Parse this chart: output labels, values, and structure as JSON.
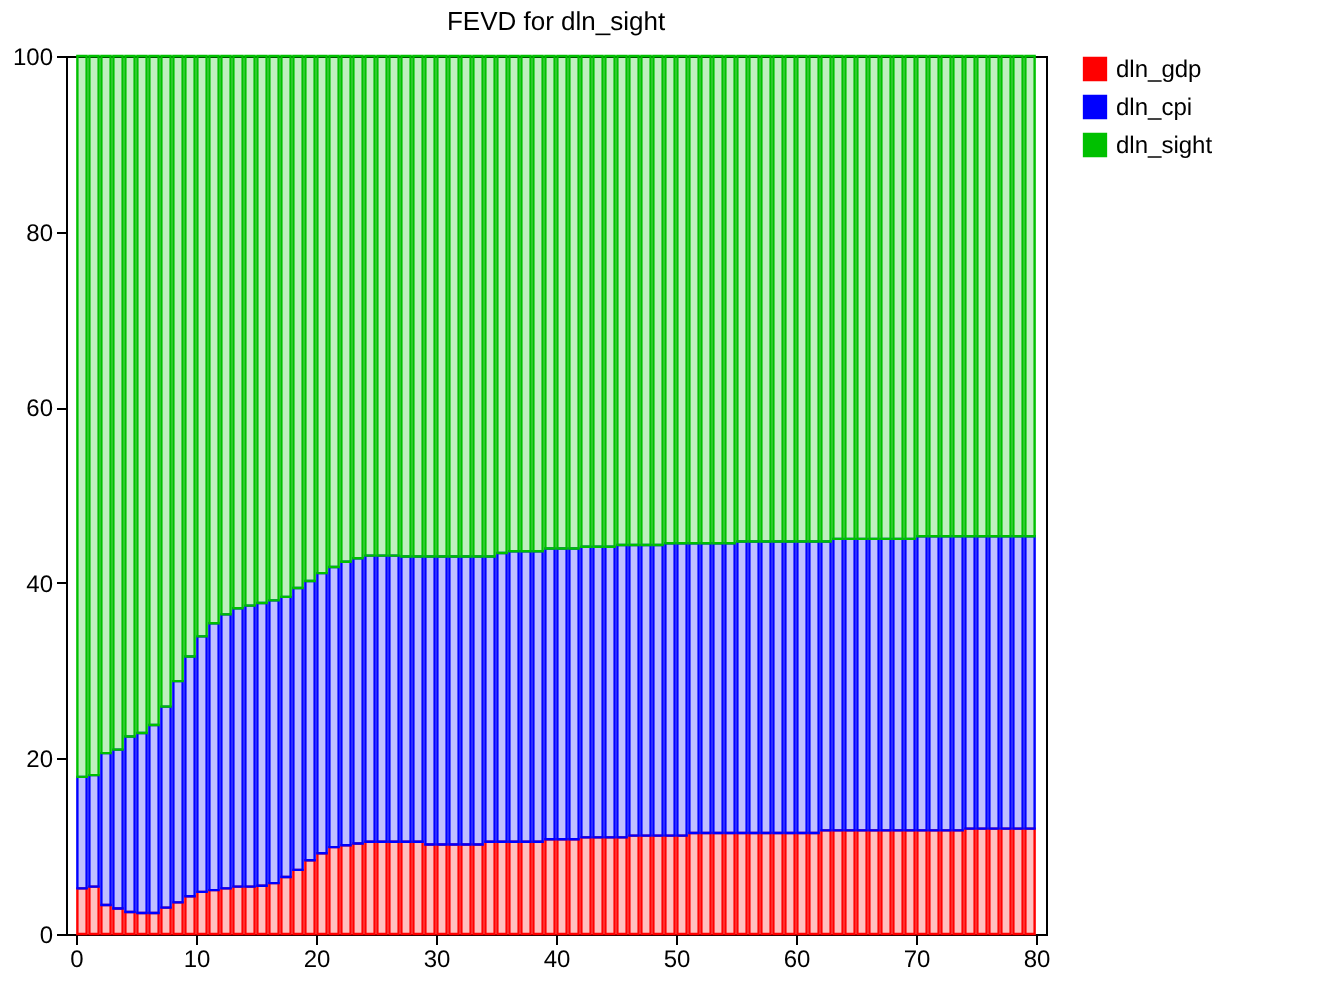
{
  "chart_data": {
    "type": "bar",
    "title": "FEVD for dln_sight",
    "stacked": true,
    "x": [
      0.5,
      1.5,
      2.5,
      3.5,
      4.5,
      5.5,
      6.5,
      7.5,
      8.5,
      9.5,
      10.5,
      11.5,
      12.5,
      13.5,
      14.5,
      15.5,
      16.5,
      17.5,
      18.5,
      19.5,
      20.5,
      21.5,
      22.5,
      23.5,
      24.5,
      25.5,
      26.5,
      27.5,
      28.5,
      29.5,
      30.5,
      31.5,
      32.5,
      33.5,
      34.5,
      35.5,
      36.5,
      37.5,
      38.5,
      39.5,
      40.5,
      41.5,
      42.5,
      43.5,
      44.5,
      45.5,
      46.5,
      47.5,
      48.5,
      49.5,
      50.5,
      51.5,
      52.5,
      53.5,
      54.5,
      55.5,
      56.5,
      57.5,
      58.5,
      59.5,
      60.5,
      61.5,
      62.5,
      63.5,
      64.5,
      65.5,
      66.5,
      67.5,
      68.5,
      69.5,
      70.5,
      71.5,
      72.5,
      73.5,
      74.5,
      75.5,
      76.5,
      77.5,
      78.5,
      79.5
    ],
    "series": [
      {
        "name": "dln_gdp",
        "color": "#ff0000",
        "values": [
          5.2,
          5.4,
          3.3,
          2.9,
          2.5,
          2.4,
          2.4,
          3.0,
          3.6,
          4.3,
          4.8,
          5.0,
          5.2,
          5.4,
          5.4,
          5.5,
          5.8,
          6.5,
          7.3,
          8.4,
          9.2,
          9.9,
          10.1,
          10.3,
          10.5,
          10.5,
          10.5,
          10.5,
          10.5,
          10.2,
          10.2,
          10.2,
          10.2,
          10.2,
          10.5,
          10.5,
          10.5,
          10.5,
          10.5,
          10.8,
          10.8,
          10.8,
          11.0,
          11.0,
          11.0,
          11.0,
          11.2,
          11.2,
          11.2,
          11.2,
          11.2,
          11.5,
          11.5,
          11.5,
          11.5,
          11.5,
          11.5,
          11.5,
          11.5,
          11.5,
          11.5,
          11.5,
          11.8,
          11.8,
          11.8,
          11.8,
          11.8,
          11.8,
          11.8,
          11.8,
          11.8,
          11.8,
          11.8,
          11.8,
          12.0,
          12.0,
          12.0,
          12.0,
          12.0,
          12.0
        ]
      },
      {
        "name": "dln_cpi",
        "color": "#0000ff",
        "values": [
          12.7,
          12.7,
          17.3,
          18.1,
          20.0,
          20.5,
          21.4,
          22.9,
          25.2,
          27.3,
          29.1,
          30.4,
          31.2,
          31.7,
          32.0,
          32.2,
          32.2,
          31.9,
          32.1,
          31.8,
          31.9,
          31.9,
          32.3,
          32.5,
          32.6,
          32.6,
          32.6,
          32.5,
          32.5,
          32.8,
          32.8,
          32.8,
          32.8,
          32.8,
          32.5,
          32.9,
          33.1,
          33.1,
          33.1,
          33.1,
          33.1,
          33.1,
          33.1,
          33.1,
          33.1,
          33.3,
          33.1,
          33.1,
          33.1,
          33.3,
          33.3,
          33.0,
          33.0,
          33.0,
          33.0,
          33.2,
          33.2,
          33.2,
          33.2,
          33.2,
          33.2,
          33.2,
          32.9,
          33.2,
          33.2,
          33.2,
          33.2,
          33.2,
          33.2,
          33.2,
          33.5,
          33.5,
          33.5,
          33.5,
          33.3,
          33.3,
          33.3,
          33.3,
          33.3,
          33.3
        ]
      },
      {
        "name": "dln_sight",
        "color": "#00c000",
        "values": [
          82.1,
          81.9,
          79.4,
          79.0,
          77.5,
          77.1,
          76.2,
          74.1,
          71.2,
          68.4,
          66.1,
          64.6,
          63.6,
          62.9,
          62.6,
          62.3,
          62.0,
          61.6,
          60.6,
          59.8,
          58.9,
          58.2,
          57.6,
          57.2,
          56.9,
          56.9,
          56.9,
          57.0,
          57.0,
          57.0,
          57.0,
          57.0,
          57.0,
          57.0,
          57.0,
          56.6,
          56.4,
          56.4,
          56.4,
          56.1,
          56.1,
          56.1,
          55.9,
          55.9,
          55.9,
          55.7,
          55.7,
          55.7,
          55.7,
          55.5,
          55.5,
          55.5,
          55.5,
          55.5,
          55.5,
          55.3,
          55.3,
          55.3,
          55.3,
          55.3,
          55.3,
          55.3,
          55.3,
          55.0,
          55.0,
          55.0,
          55.0,
          55.0,
          55.0,
          55.0,
          54.7,
          54.7,
          54.7,
          54.7,
          54.7,
          54.7,
          54.7,
          54.7,
          54.7,
          54.7
        ]
      }
    ],
    "xlim": [
      0,
      80
    ],
    "xticks": [
      0,
      10,
      20,
      30,
      40,
      50,
      60,
      70,
      80
    ],
    "ylim": [
      0,
      100
    ],
    "yticks": [
      0,
      20,
      40,
      60,
      80,
      100
    ],
    "grid": false,
    "legend": "top right"
  }
}
